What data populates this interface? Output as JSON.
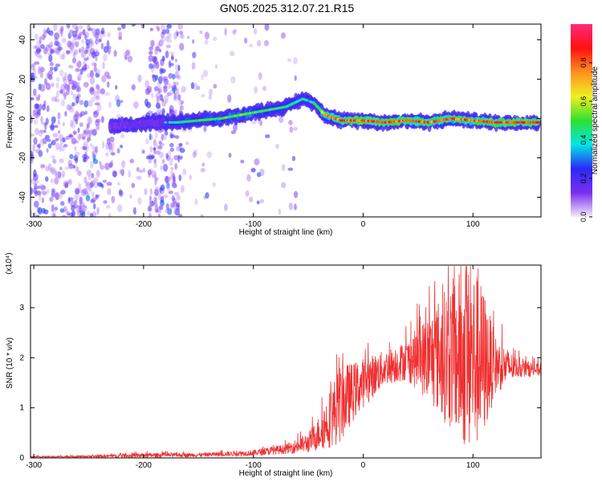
{
  "title": "GN05.2025.312.07.21.R15",
  "chart_data": [
    {
      "type": "heatmap",
      "xlabel": "Height of straight line (km)",
      "ylabel": "Frequency (Hz)",
      "xlim": [
        -303,
        162
      ],
      "ylim": [
        -50,
        48
      ],
      "xticks": [
        -300,
        -200,
        -100,
        0,
        100
      ],
      "yticks": [
        -40,
        -20,
        0,
        20,
        40
      ],
      "colorbar": {
        "label": "Normalized spectral amplitude",
        "range": [
          0,
          1
        ],
        "ticks": [
          "0.0",
          "0.2",
          "0.4",
          "0.6",
          "0.8"
        ],
        "colors": [
          "#f5eafc",
          "#7a2ff0",
          "#2a2af5",
          "#00e6e6",
          "#30e030",
          "#f0f020",
          "#ff9020",
          "#ff1010",
          "#ff2a7a"
        ]
      },
      "ridge": {
        "x": [
          -230,
          -210,
          -190,
          -170,
          -150,
          -130,
          -110,
          -90,
          -70,
          -55,
          -45,
          -35,
          -20,
          0,
          20,
          40,
          60,
          80,
          100,
          120,
          140,
          160
        ],
        "y": [
          -4,
          -3,
          -2,
          -2,
          -1,
          0,
          2,
          4,
          6,
          10,
          8,
          2,
          -1,
          -1,
          -2,
          -1,
          -2,
          0,
          -1,
          -2,
          -2,
          -2
        ],
        "amplitude": [
          0.25,
          0.3,
          0.25,
          0.45,
          0.5,
          0.5,
          0.55,
          0.5,
          0.45,
          0.4,
          0.4,
          0.7,
          0.85,
          0.9,
          0.9,
          0.85,
          0.85,
          0.8,
          0.85,
          0.9,
          0.9,
          0.9
        ]
      }
    },
    {
      "type": "line",
      "xlabel": "Height of straight line (km)",
      "ylabel": "SNR (10 * v/v)",
      "yscale_label": "(x10⁴)",
      "xlim": [
        -303,
        162
      ],
      "ylim": [
        0,
        3.85
      ],
      "xticks": [
        -300,
        -200,
        -100,
        0,
        100
      ],
      "yticks": [
        0,
        1,
        2,
        3
      ],
      "series": [
        {
          "color": "#f03030",
          "envelope_x": [
            -303,
            -250,
            -200,
            -150,
            -100,
            -70,
            -50,
            -40,
            -30,
            -20,
            -10,
            0,
            20,
            40,
            60,
            80,
            90,
            100,
            110,
            120,
            140,
            162
          ],
          "mean": [
            0.02,
            0.03,
            0.05,
            0.06,
            0.1,
            0.18,
            0.3,
            0.5,
            0.8,
            1.1,
            1.3,
            1.5,
            1.8,
            1.95,
            2.0,
            2.05,
            2.0,
            1.95,
            1.9,
            1.85,
            1.8,
            1.75
          ],
          "spread": [
            0.01,
            0.02,
            0.05,
            0.04,
            0.06,
            0.1,
            0.2,
            0.35,
            0.6,
            0.8,
            0.6,
            0.5,
            0.35,
            0.4,
            0.9,
            1.5,
            1.8,
            1.9,
            1.5,
            0.6,
            0.2,
            0.12
          ]
        }
      ]
    }
  ]
}
